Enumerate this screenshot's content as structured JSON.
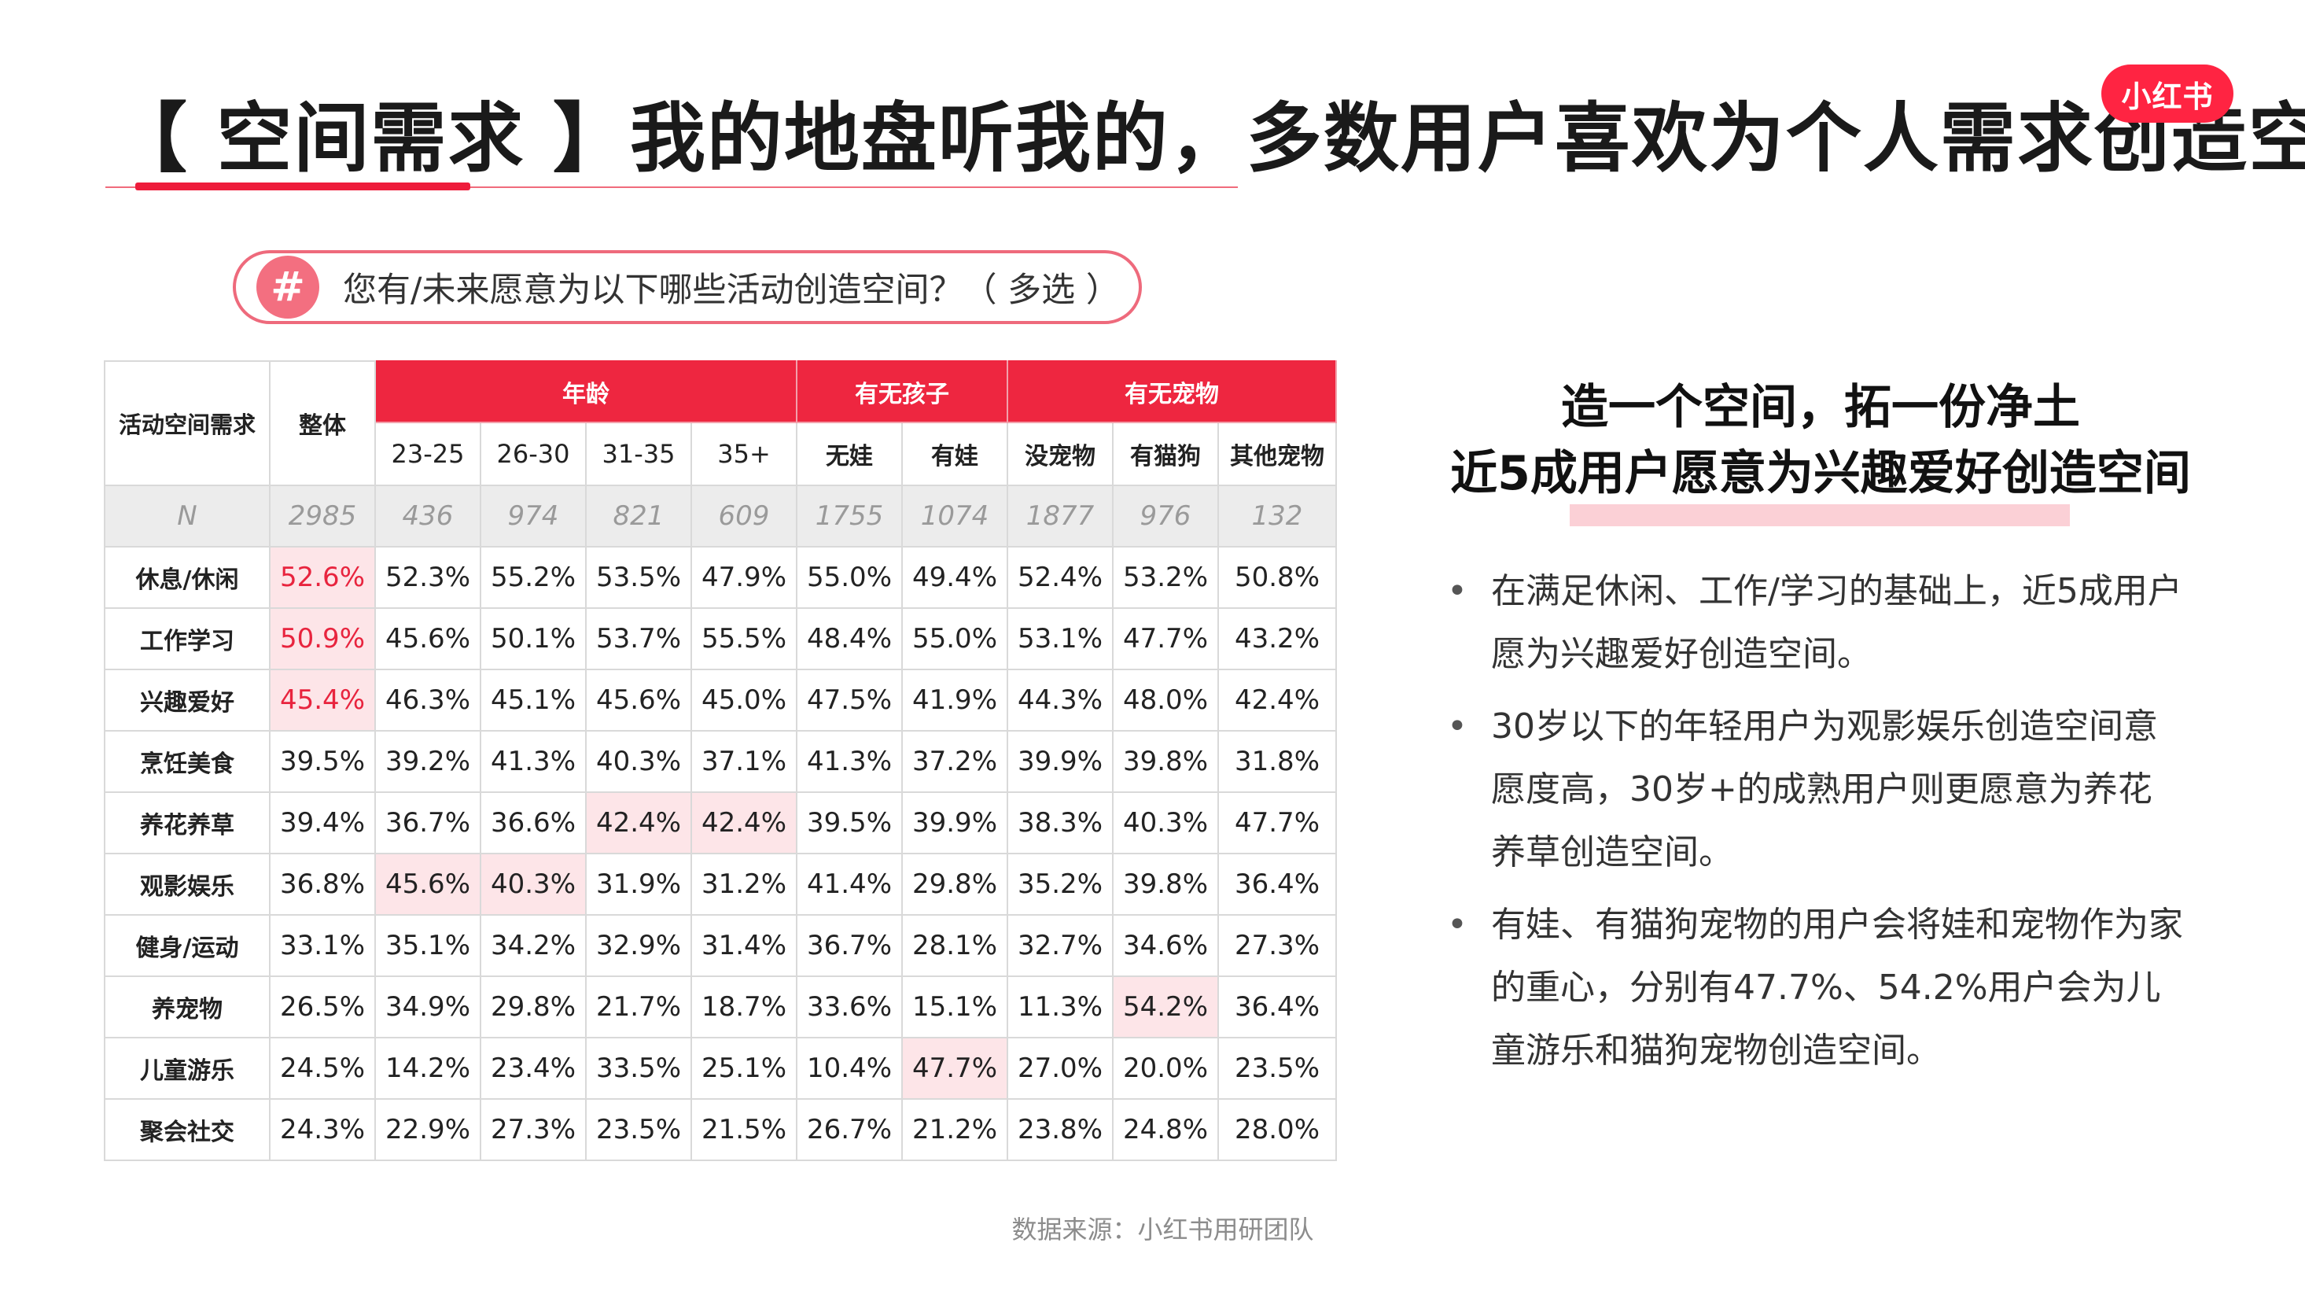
{
  "title": "【 空间需求 】我的地盘听我的，多数用户喜欢为个人需求创造空间",
  "logo": "小红书",
  "question": {
    "icon": "#",
    "text": "您有/未来愿意为以下哪些活动创造空间？（ 多选 ）"
  },
  "table": {
    "corner_label": "活动空间需求",
    "overall_label": "整体",
    "groups": {
      "age": "年龄",
      "kids": "有无孩子",
      "pets": "有无宠物"
    },
    "subheaders": [
      "23-25",
      "26-30",
      "31-35",
      "35+",
      "无娃",
      "有娃",
      "没宠物",
      "有猫狗",
      "其他宠物"
    ],
    "n_row": {
      "label": "N",
      "values": [
        "2985",
        "436",
        "974",
        "821",
        "609",
        "1755",
        "1074",
        "1877",
        "976",
        "132"
      ]
    },
    "rows": [
      {
        "label": "休息/休闲",
        "values": [
          "52.6%",
          "52.3%",
          "55.2%",
          "53.5%",
          "47.9%",
          "55.0%",
          "49.4%",
          "52.4%",
          "53.2%",
          "50.8%"
        ]
      },
      {
        "label": "工作学习",
        "values": [
          "50.9%",
          "45.6%",
          "50.1%",
          "53.7%",
          "55.5%",
          "48.4%",
          "55.0%",
          "53.1%",
          "47.7%",
          "43.2%"
        ]
      },
      {
        "label": "兴趣爱好",
        "values": [
          "45.4%",
          "46.3%",
          "45.1%",
          "45.6%",
          "45.0%",
          "47.5%",
          "41.9%",
          "44.3%",
          "48.0%",
          "42.4%"
        ]
      },
      {
        "label": "烹饪美食",
        "values": [
          "39.5%",
          "39.2%",
          "41.3%",
          "40.3%",
          "37.1%",
          "41.3%",
          "37.2%",
          "39.9%",
          "39.8%",
          "31.8%"
        ]
      },
      {
        "label": "养花养草",
        "values": [
          "39.4%",
          "36.7%",
          "36.6%",
          "42.4%",
          "42.4%",
          "39.5%",
          "39.9%",
          "38.3%",
          "40.3%",
          "47.7%"
        ]
      },
      {
        "label": "观影娱乐",
        "values": [
          "36.8%",
          "45.6%",
          "40.3%",
          "31.9%",
          "31.2%",
          "41.4%",
          "29.8%",
          "35.2%",
          "39.8%",
          "36.4%"
        ]
      },
      {
        "label": "健身/运动",
        "values": [
          "33.1%",
          "35.1%",
          "34.2%",
          "32.9%",
          "31.4%",
          "36.7%",
          "28.1%",
          "32.7%",
          "34.6%",
          "27.3%"
        ]
      },
      {
        "label": "养宠物",
        "values": [
          "26.5%",
          "34.9%",
          "29.8%",
          "21.7%",
          "18.7%",
          "33.6%",
          "15.1%",
          "11.3%",
          "54.2%",
          "36.4%"
        ]
      },
      {
        "label": "儿童游乐",
        "values": [
          "24.5%",
          "14.2%",
          "23.4%",
          "33.5%",
          "25.1%",
          "10.4%",
          "47.7%",
          "27.0%",
          "20.0%",
          "23.5%"
        ]
      },
      {
        "label": "聚会社交",
        "values": [
          "24.3%",
          "22.9%",
          "27.3%",
          "23.5%",
          "21.5%",
          "26.7%",
          "21.2%",
          "23.8%",
          "24.8%",
          "28.0%"
        ]
      }
    ]
  },
  "right": {
    "heading_line1": "造一个空间，拓一份净土",
    "heading_line2": "近5成用户愿意为兴趣爱好创造空间",
    "bullet_mark": "•",
    "bullets": [
      "在满足休闲、工作/学习的基础上，近5成用户愿为兴趣爱好创造空间。",
      "30岁以下的年轻用户为观影娱乐创造空间意愿度高，30岁+的成熟用户则更愿意为养花养草创造空间。",
      "有娃、有猫狗宠物的用户会将娃和宠物作为家的重心，分别有47.7%、54.2%用户会为儿童游乐和猫狗宠物创造空间。"
    ]
  },
  "source": "数据来源：小红书用研团队",
  "colors": {
    "brand_red": "#ee2640",
    "highlight_bg": "#fde5e8",
    "highlight_text": "#e8243e"
  }
}
